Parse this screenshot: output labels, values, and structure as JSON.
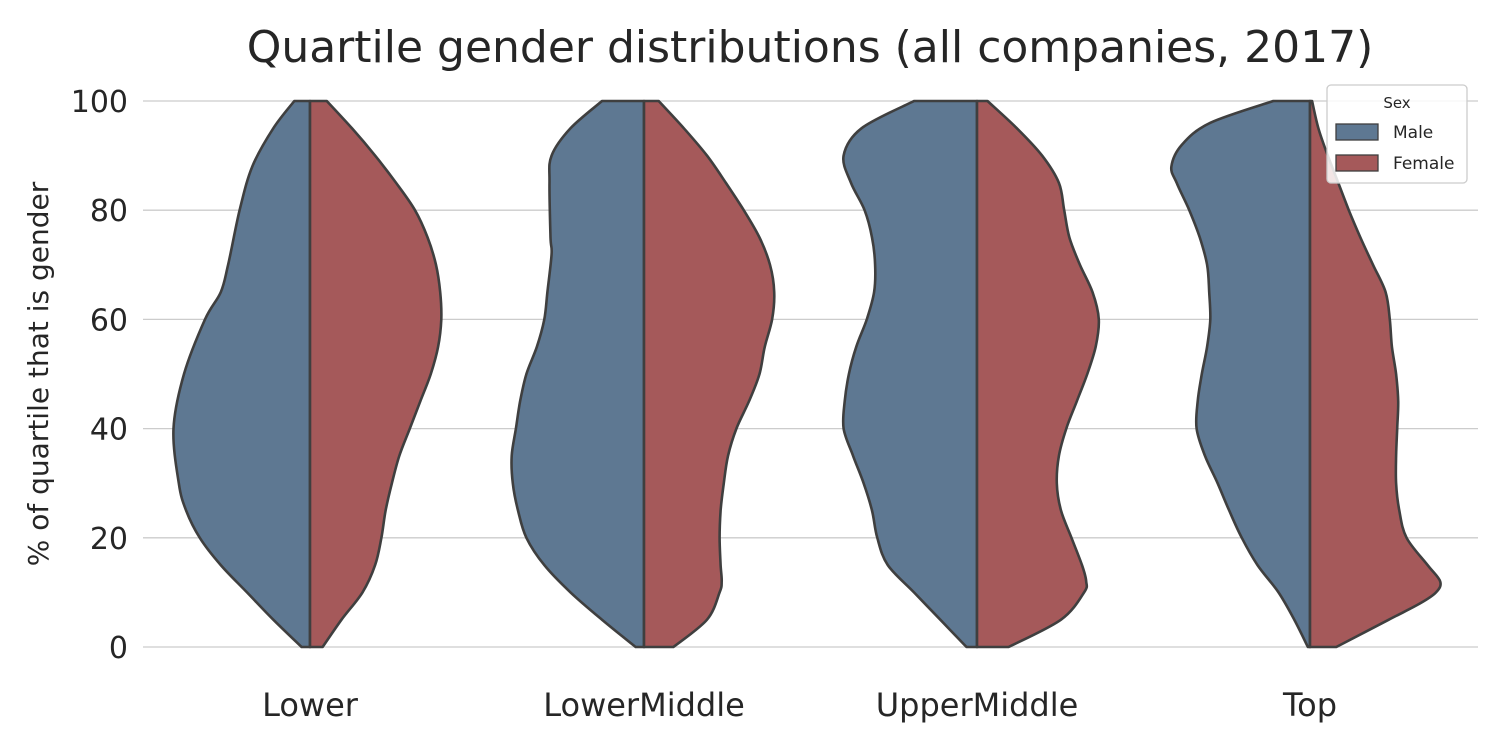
{
  "chart_data": {
    "type": "violin",
    "title": "Quartile gender distributions (all companies, 2017)",
    "xlabel": "",
    "ylabel": "% of quartile that is gender",
    "ylim": [
      0,
      100
    ],
    "yticks": [
      0,
      20,
      40,
      60,
      80,
      100
    ],
    "grid": "horizontal",
    "categories": [
      "Lower",
      "LowerMiddle",
      "UpperMiddle",
      "Top"
    ],
    "legend": {
      "title": "Sex",
      "placement": "top-right",
      "entries": [
        "Male",
        "Female"
      ]
    },
    "series": [
      {
        "name": "Male",
        "color": "#5e7892",
        "side": "left",
        "density_profiles": [
          {
            "category": "Lower",
            "points": [
              [
                0,
                0.08
              ],
              [
                5,
                0.35
              ],
              [
                10,
                0.6
              ],
              [
                15,
                0.85
              ],
              [
                20,
                1.05
              ],
              [
                25,
                1.18
              ],
              [
                30,
                1.25
              ],
              [
                40,
                1.3
              ],
              [
                50,
                1.2
              ],
              [
                60,
                1.0
              ],
              [
                65,
                0.85
              ],
              [
                70,
                0.78
              ],
              [
                80,
                0.67
              ],
              [
                88,
                0.55
              ],
              [
                95,
                0.35
              ],
              [
                100,
                0.15
              ]
            ]
          },
          {
            "category": "LowerMiddle",
            "points": [
              [
                0,
                0.08
              ],
              [
                5,
                0.4
              ],
              [
                10,
                0.7
              ],
              [
                15,
                0.95
              ],
              [
                20,
                1.12
              ],
              [
                25,
                1.2
              ],
              [
                30,
                1.25
              ],
              [
                35,
                1.26
              ],
              [
                40,
                1.22
              ],
              [
                45,
                1.18
              ],
              [
                50,
                1.12
              ],
              [
                55,
                1.02
              ],
              [
                60,
                0.95
              ],
              [
                65,
                0.92
              ],
              [
                72,
                0.88
              ],
              [
                75,
                0.89
              ],
              [
                85,
                0.9
              ],
              [
                90,
                0.88
              ],
              [
                95,
                0.7
              ],
              [
                100,
                0.4
              ]
            ]
          },
          {
            "category": "UpperMiddle",
            "points": [
              [
                0,
                0.1
              ],
              [
                5,
                0.35
              ],
              [
                10,
                0.6
              ],
              [
                15,
                0.85
              ],
              [
                20,
                0.95
              ],
              [
                25,
                1.0
              ],
              [
                30,
                1.08
              ],
              [
                35,
                1.18
              ],
              [
                40,
                1.27
              ],
              [
                45,
                1.26
              ],
              [
                50,
                1.22
              ],
              [
                55,
                1.15
              ],
              [
                60,
                1.05
              ],
              [
                65,
                0.98
              ],
              [
                70,
                0.97
              ],
              [
                75,
                1.0
              ],
              [
                80,
                1.07
              ],
              [
                85,
                1.2
              ],
              [
                90,
                1.27
              ],
              [
                95,
                1.1
              ],
              [
                100,
                0.6
              ]
            ]
          },
          {
            "category": "Top",
            "points": [
              [
                0,
                0.02
              ],
              [
                5,
                0.15
              ],
              [
                10,
                0.3
              ],
              [
                15,
                0.5
              ],
              [
                20,
                0.65
              ],
              [
                25,
                0.77
              ],
              [
                30,
                0.88
              ],
              [
                35,
                1.0
              ],
              [
                40,
                1.08
              ],
              [
                45,
                1.07
              ],
              [
                50,
                1.03
              ],
              [
                55,
                0.98
              ],
              [
                60,
                0.95
              ],
              [
                65,
                0.96
              ],
              [
                70,
                0.98
              ],
              [
                75,
                1.05
              ],
              [
                80,
                1.15
              ],
              [
                85,
                1.27
              ],
              [
                88,
                1.32
              ],
              [
                92,
                1.22
              ],
              [
                96,
                0.95
              ],
              [
                100,
                0.35
              ]
            ]
          }
        ]
      },
      {
        "name": "Female",
        "color": "#a5595a",
        "side": "right",
        "density_profiles": [
          {
            "category": "Lower",
            "points": [
              [
                0,
                0.12
              ],
              [
                5,
                0.3
              ],
              [
                10,
                0.5
              ],
              [
                15,
                0.62
              ],
              [
                20,
                0.68
              ],
              [
                25,
                0.72
              ],
              [
                30,
                0.78
              ],
              [
                35,
                0.85
              ],
              [
                40,
                0.95
              ],
              [
                45,
                1.05
              ],
              [
                50,
                1.15
              ],
              [
                55,
                1.22
              ],
              [
                60,
                1.25
              ],
              [
                65,
                1.24
              ],
              [
                70,
                1.2
              ],
              [
                75,
                1.12
              ],
              [
                80,
                1.0
              ],
              [
                85,
                0.82
              ],
              [
                90,
                0.62
              ],
              [
                95,
                0.4
              ],
              [
                100,
                0.16
              ]
            ]
          },
          {
            "category": "LowerMiddle",
            "points": [
              [
                0,
                0.28
              ],
              [
                5,
                0.6
              ],
              [
                10,
                0.72
              ],
              [
                12,
                0.74
              ],
              [
                15,
                0.73
              ],
              [
                20,
                0.72
              ],
              [
                25,
                0.73
              ],
              [
                30,
                0.76
              ],
              [
                35,
                0.8
              ],
              [
                40,
                0.88
              ],
              [
                45,
                1.0
              ],
              [
                50,
                1.1
              ],
              [
                55,
                1.15
              ],
              [
                60,
                1.22
              ],
              [
                65,
                1.24
              ],
              [
                70,
                1.2
              ],
              [
                75,
                1.1
              ],
              [
                80,
                0.95
              ],
              [
                85,
                0.78
              ],
              [
                90,
                0.6
              ],
              [
                95,
                0.38
              ],
              [
                100,
                0.14
              ]
            ]
          },
          {
            "category": "UpperMiddle",
            "points": [
              [
                0,
                0.3
              ],
              [
                5,
                0.8
              ],
              [
                10,
                1.02
              ],
              [
                12,
                1.04
              ],
              [
                15,
                1.0
              ],
              [
                20,
                0.9
              ],
              [
                25,
                0.8
              ],
              [
                30,
                0.76
              ],
              [
                35,
                0.78
              ],
              [
                40,
                0.85
              ],
              [
                45,
                0.95
              ],
              [
                50,
                1.05
              ],
              [
                55,
                1.13
              ],
              [
                60,
                1.16
              ],
              [
                65,
                1.1
              ],
              [
                70,
                0.98
              ],
              [
                75,
                0.88
              ],
              [
                80,
                0.83
              ],
              [
                85,
                0.78
              ],
              [
                90,
                0.62
              ],
              [
                95,
                0.38
              ],
              [
                100,
                0.1
              ]
            ]
          },
          {
            "category": "Top",
            "points": [
              [
                0,
                0.25
              ],
              [
                5,
                0.75
              ],
              [
                8,
                1.05
              ],
              [
                10,
                1.2
              ],
              [
                12,
                1.24
              ],
              [
                15,
                1.12
              ],
              [
                20,
                0.92
              ],
              [
                25,
                0.85
              ],
              [
                30,
                0.82
              ],
              [
                35,
                0.82
              ],
              [
                40,
                0.83
              ],
              [
                45,
                0.84
              ],
              [
                50,
                0.82
              ],
              [
                55,
                0.78
              ],
              [
                60,
                0.76
              ],
              [
                65,
                0.72
              ],
              [
                70,
                0.6
              ],
              [
                75,
                0.48
              ],
              [
                80,
                0.37
              ],
              [
                85,
                0.27
              ],
              [
                90,
                0.17
              ],
              [
                95,
                0.08
              ],
              [
                100,
                0.02
              ]
            ]
          }
        ]
      }
    ]
  }
}
